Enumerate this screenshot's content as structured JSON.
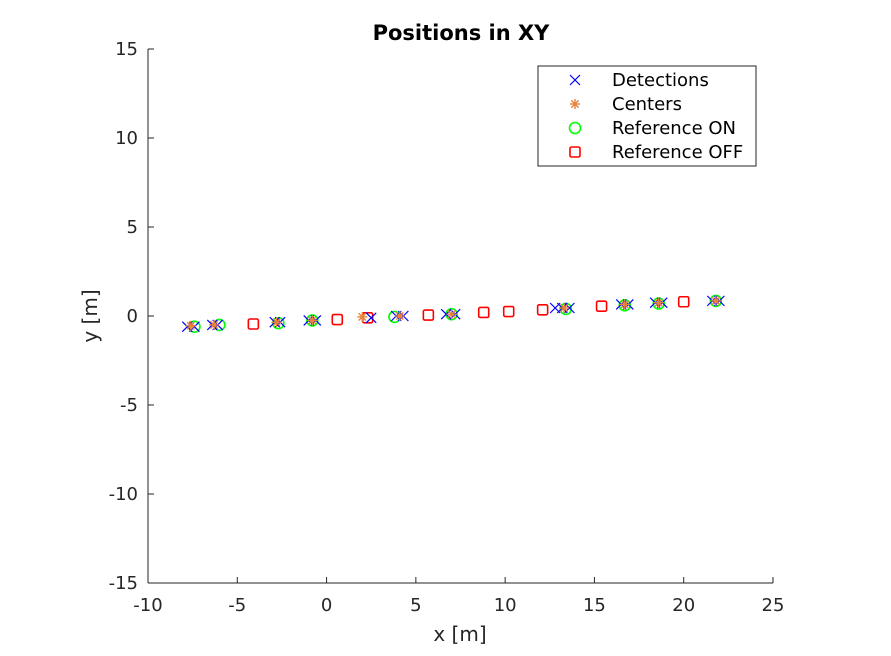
{
  "chart_data": {
    "type": "scatter",
    "title": "Positions in XY",
    "xlabel": "x [m]",
    "ylabel": "y [m]",
    "xlim": [
      -10,
      25
    ],
    "ylim": [
      -15,
      15
    ],
    "xticks": [
      -10,
      -5,
      0,
      5,
      10,
      15,
      20,
      25
    ],
    "yticks": [
      -15,
      -10,
      -5,
      0,
      5,
      10,
      15
    ],
    "grid": false,
    "legend_position": "top-right",
    "series": [
      {
        "name": "Detections",
        "marker": "x",
        "color": "#0000ff",
        "points": [
          [
            -7.8,
            -0.6
          ],
          [
            -7.4,
            -0.6
          ],
          [
            -6.4,
            -0.5
          ],
          [
            -6.1,
            -0.5
          ],
          [
            -2.9,
            -0.35
          ],
          [
            -2.6,
            -0.35
          ],
          [
            -1.0,
            -0.25
          ],
          [
            -0.6,
            -0.25
          ],
          [
            2.5,
            -0.1
          ],
          [
            3.9,
            0.0
          ],
          [
            4.3,
            0.0
          ],
          [
            6.7,
            0.1
          ],
          [
            7.2,
            0.1
          ],
          [
            12.8,
            0.45
          ],
          [
            13.2,
            0.45
          ],
          [
            13.6,
            0.45
          ],
          [
            16.5,
            0.65
          ],
          [
            16.9,
            0.65
          ],
          [
            18.4,
            0.75
          ],
          [
            18.8,
            0.75
          ],
          [
            21.6,
            0.85
          ],
          [
            22.0,
            0.85
          ]
        ]
      },
      {
        "name": "Centers",
        "marker": "asterisk",
        "color": "#e8823a",
        "points": [
          [
            -7.6,
            -0.55
          ],
          [
            -6.3,
            -0.5
          ],
          [
            -2.8,
            -0.35
          ],
          [
            -0.8,
            -0.25
          ],
          [
            2.0,
            -0.05
          ],
          [
            4.1,
            0.0
          ],
          [
            7.0,
            0.1
          ],
          [
            13.3,
            0.45
          ],
          [
            16.7,
            0.65
          ],
          [
            18.6,
            0.75
          ],
          [
            21.8,
            0.85
          ]
        ]
      },
      {
        "name": "Reference ON",
        "marker": "circle",
        "color": "#00ff00",
        "points": [
          [
            -7.4,
            -0.6
          ],
          [
            -6.0,
            -0.5
          ],
          [
            -2.7,
            -0.4
          ],
          [
            -0.8,
            -0.25
          ],
          [
            3.8,
            -0.05
          ],
          [
            7.0,
            0.1
          ],
          [
            13.4,
            0.4
          ],
          [
            16.7,
            0.6
          ],
          [
            18.6,
            0.7
          ],
          [
            21.8,
            0.85
          ]
        ]
      },
      {
        "name": "Reference OFF",
        "marker": "square",
        "color": "#ff0000",
        "points": [
          [
            -4.1,
            -0.45
          ],
          [
            0.6,
            -0.2
          ],
          [
            2.3,
            -0.1
          ],
          [
            5.7,
            0.05
          ],
          [
            8.8,
            0.2
          ],
          [
            10.2,
            0.25
          ],
          [
            12.1,
            0.35
          ],
          [
            15.4,
            0.55
          ],
          [
            20.0,
            0.8
          ]
        ]
      }
    ]
  }
}
